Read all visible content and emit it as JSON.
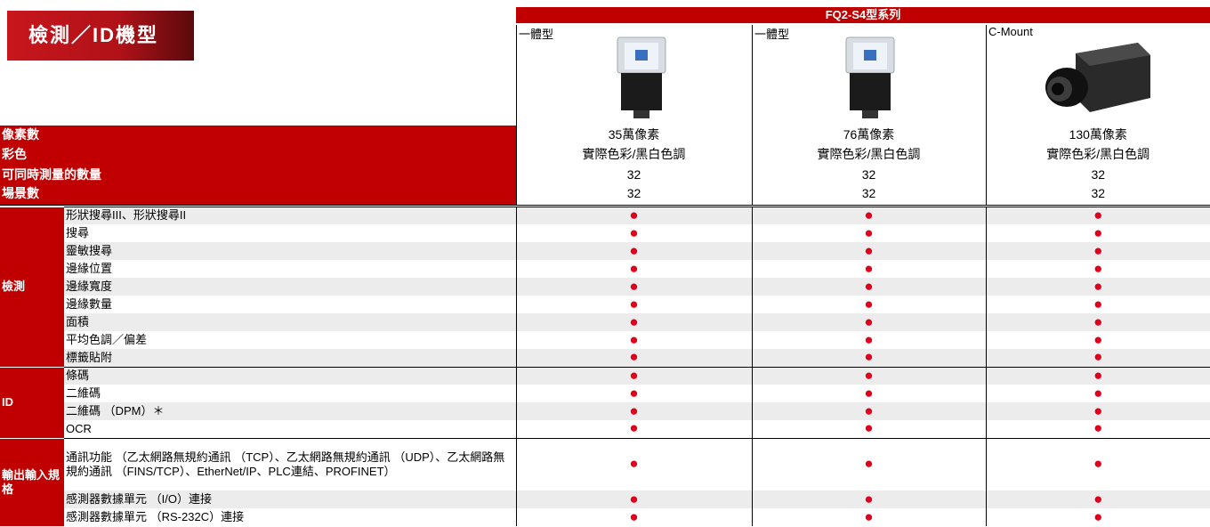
{
  "header": {
    "title": "檢測／ID機型"
  },
  "table": {
    "series_title": "FQ2-S4型系列",
    "columns": [
      "一體型",
      "一體型",
      "C-Mount"
    ],
    "spec_rows": [
      {
        "label": "像素數",
        "values": [
          "35萬像素",
          "76萬像素",
          "130萬像素"
        ]
      },
      {
        "label": "彩色",
        "values": [
          "實際色彩/黑白色調",
          "實際色彩/黑白色調",
          "實際色彩/黑白色調"
        ]
      },
      {
        "label": "可同時測量的數量",
        "values": [
          "32",
          "32",
          "32"
        ]
      },
      {
        "label": "場景數",
        "values": [
          "32",
          "32",
          "32"
        ]
      }
    ],
    "groups": [
      {
        "label": "檢測",
        "rows": [
          {
            "label": "形狀搜尋III、形狀搜尋II",
            "cells": [
              "●",
              "●",
              "●"
            ]
          },
          {
            "label": "搜尋",
            "cells": [
              "●",
              "●",
              "●"
            ]
          },
          {
            "label": "靈敏搜尋",
            "cells": [
              "●",
              "●",
              "●"
            ]
          },
          {
            "label": "邊緣位置",
            "cells": [
              "●",
              "●",
              "●"
            ]
          },
          {
            "label": "邊緣寬度",
            "cells": [
              "●",
              "●",
              "●"
            ]
          },
          {
            "label": "邊緣數量",
            "cells": [
              "●",
              "●",
              "●"
            ]
          },
          {
            "label": "面積",
            "cells": [
              "●",
              "●",
              "●"
            ]
          },
          {
            "label": "平均色調／偏差",
            "cells": [
              "●",
              "●",
              "●"
            ]
          },
          {
            "label": "標籤貼附",
            "cells": [
              "●",
              "●",
              "●"
            ]
          }
        ]
      },
      {
        "label": "ID",
        "rows": [
          {
            "label": "條碼",
            "cells": [
              "●",
              "●",
              "●"
            ]
          },
          {
            "label": "二維碼",
            "cells": [
              "●",
              "●",
              "●"
            ]
          },
          {
            "label": "二維碼 （DPM）＊",
            "cells": [
              "●",
              "●",
              "●"
            ]
          },
          {
            "label": "OCR",
            "cells": [
              "●",
              "●",
              "●"
            ]
          }
        ]
      },
      {
        "label": "輸出輸入規格",
        "rows": [
          {
            "label": "通訊功能 （乙太網路無規約通訊 （TCP）、乙太網路無規約通訊 （UDP）、乙太網路無規約通訊 （FINS/TCP）、EtherNet/IP、PLC連結、PROFINET）",
            "cells": [
              "●",
              "●",
              "●"
            ]
          },
          {
            "label": "感測器數據單元 （I/O）連接",
            "cells": [
              "●",
              "●",
              "●"
            ]
          },
          {
            "label": "感測器數據單元 （RS-232C）連接",
            "cells": [
              "●",
              "●",
              "●"
            ]
          }
        ]
      }
    ]
  }
}
